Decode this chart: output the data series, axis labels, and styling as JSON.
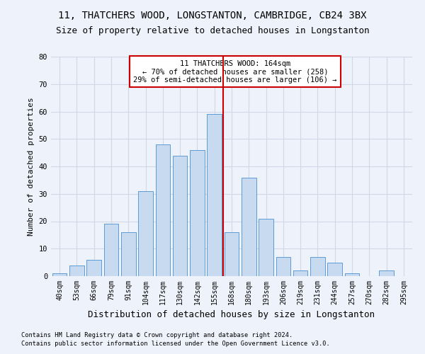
{
  "title_line1": "11, THATCHERS WOOD, LONGSTANTON, CAMBRIDGE, CB24 3BX",
  "title_line2": "Size of property relative to detached houses in Longstanton",
  "xlabel": "Distribution of detached houses by size in Longstanton",
  "ylabel": "Number of detached properties",
  "footer_line1": "Contains HM Land Registry data © Crown copyright and database right 2024.",
  "footer_line2": "Contains public sector information licensed under the Open Government Licence v3.0.",
  "bar_labels": [
    "40sqm",
    "53sqm",
    "66sqm",
    "79sqm",
    "91sqm",
    "104sqm",
    "117sqm",
    "130sqm",
    "142sqm",
    "155sqm",
    "168sqm",
    "180sqm",
    "193sqm",
    "206sqm",
    "219sqm",
    "231sqm",
    "244sqm",
    "257sqm",
    "270sqm",
    "282sqm",
    "295sqm"
  ],
  "bar_values": [
    1,
    4,
    6,
    19,
    16,
    31,
    48,
    44,
    46,
    59,
    16,
    36,
    21,
    7,
    2,
    7,
    5,
    1,
    0,
    2,
    0
  ],
  "bar_color": "#c8daf0",
  "bar_edge_color": "#5b9bd5",
  "red_line_bin": 10,
  "annotation_text": "11 THATCHERS WOOD: 164sqm\n← 70% of detached houses are smaller (258)\n29% of semi-detached houses are larger (106) →",
  "annotation_box_color": "#ffffff",
  "annotation_box_edge": "#cc0000",
  "red_line_color": "#cc0000",
  "ylim": [
    0,
    80
  ],
  "yticks": [
    0,
    10,
    20,
    30,
    40,
    50,
    60,
    70,
    80
  ],
  "grid_color": "#d0d8e8",
  "bg_color": "#eef2fa",
  "title_fontsize": 10,
  "subtitle_fontsize": 9,
  "tick_fontsize": 7,
  "ylabel_fontsize": 8,
  "xlabel_fontsize": 9
}
